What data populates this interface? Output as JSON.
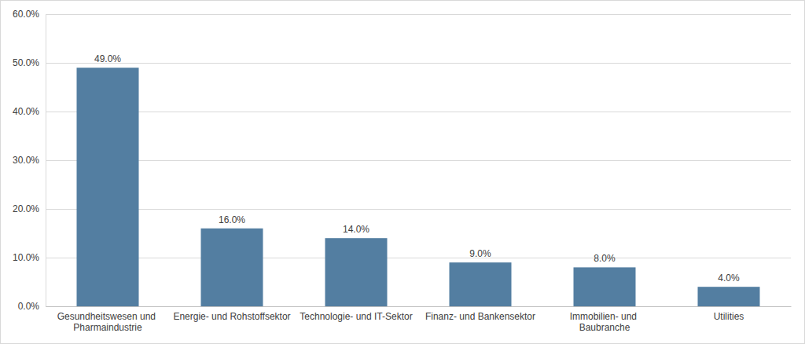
{
  "chart_data": {
    "type": "bar",
    "categories": [
      "Gesundheitswesen und Pharmaindustrie",
      "Energie- und Rohstoffsektor",
      "Technologie- und IT-Sektor",
      "Finanz- und Bankensektor",
      "Immobilien- und Baubranche",
      "Utilities"
    ],
    "values": [
      49,
      16,
      14,
      9,
      8,
      4
    ],
    "value_labels": [
      "49.0%",
      "16.0%",
      "14.0%",
      "9.0%",
      "8.0%",
      "4.0%"
    ],
    "color": "#537ea1",
    "ylim": [
      0,
      60
    ],
    "yticks": [
      {
        "value": 0,
        "label": "0.0%"
      },
      {
        "value": 10,
        "label": "10.0%"
      },
      {
        "value": 20,
        "label": "20.0%"
      },
      {
        "value": 30,
        "label": "30.0%"
      },
      {
        "value": 40,
        "label": "40.0%"
      },
      {
        "value": 50,
        "label": "50.0%"
      },
      {
        "value": 60,
        "label": "60.0%"
      }
    ],
    "grid": true,
    "data_labels": true
  }
}
